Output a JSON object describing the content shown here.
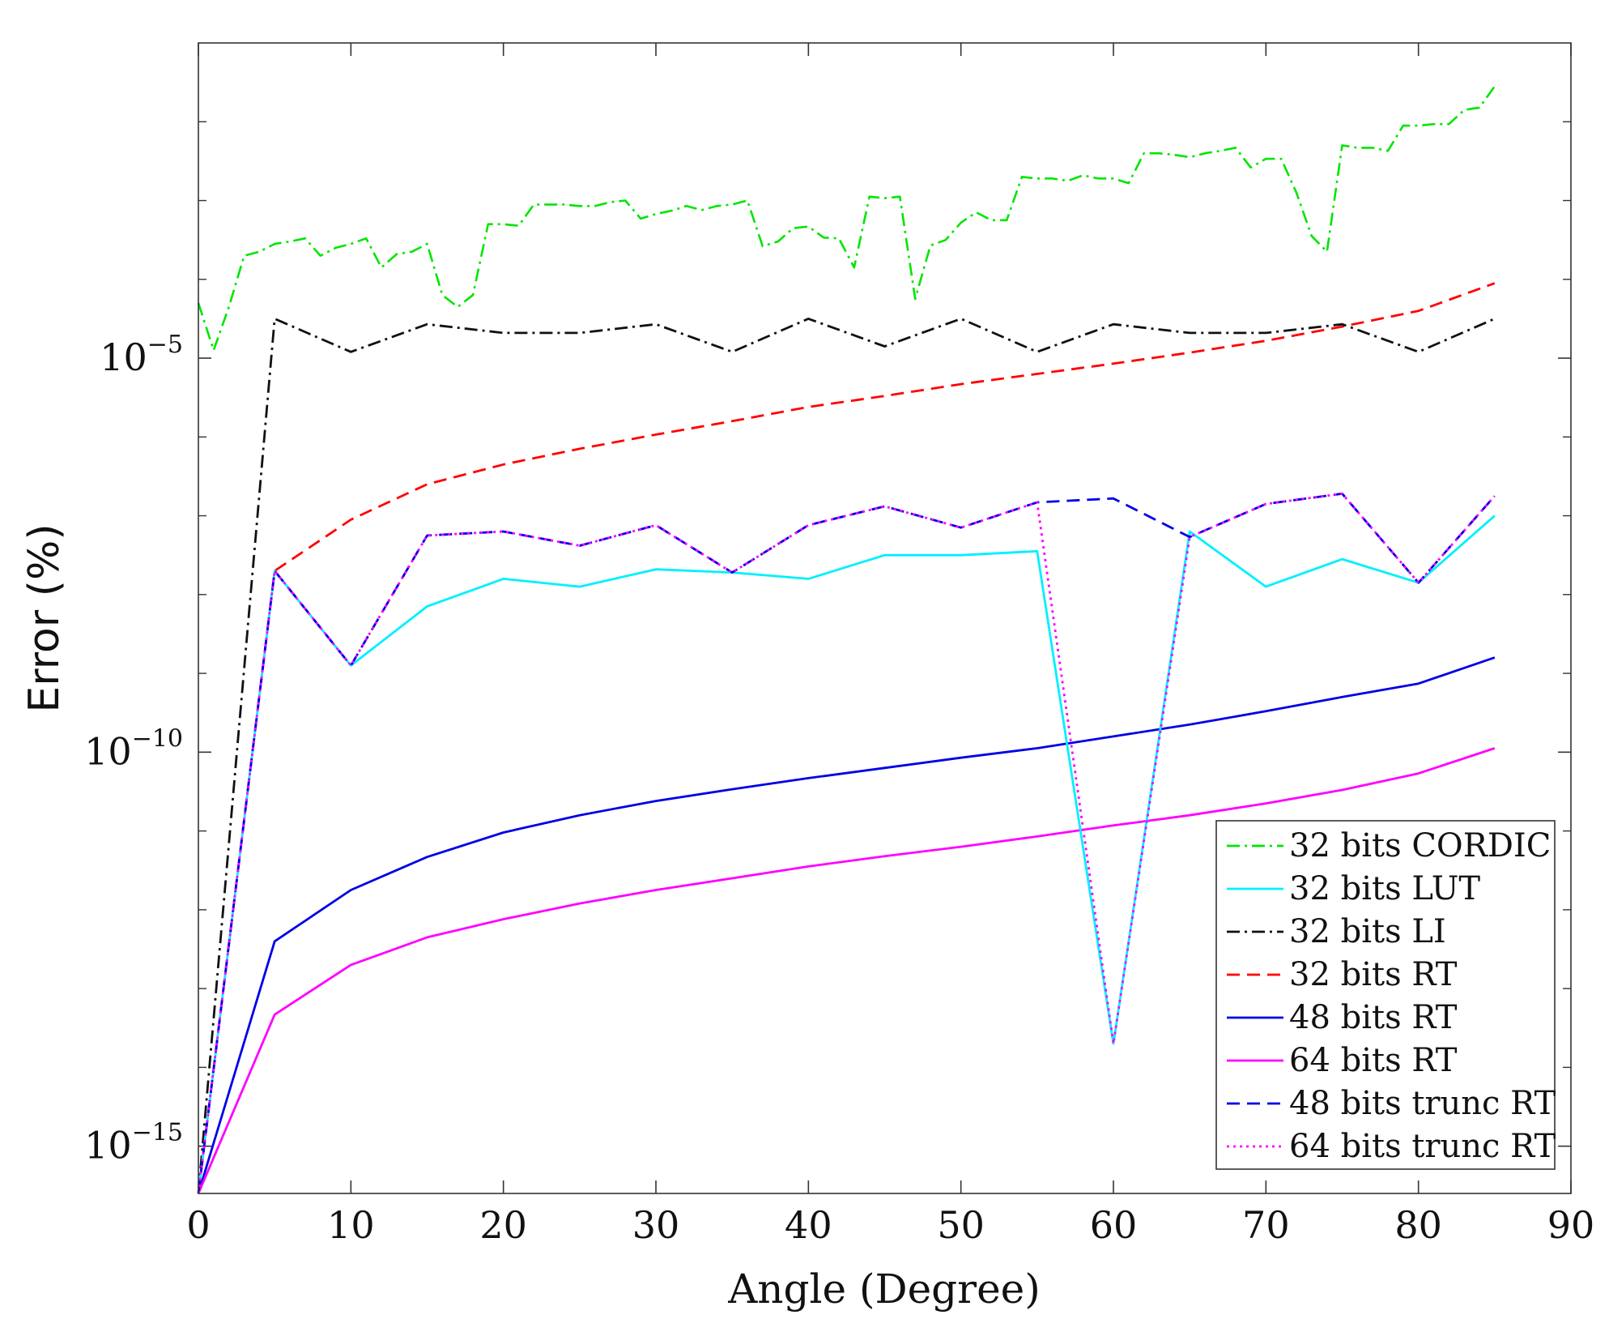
{
  "chart_data": {
    "type": "line",
    "title": "",
    "xlabel": "Angle (Degree)",
    "ylabel": "Error (%)",
    "xscale": "linear",
    "yscale": "log",
    "xlim": [
      0,
      90
    ],
    "ylim_log10": [
      -15.6,
      -1.0
    ],
    "x_ticks": [
      {
        "value": 0,
        "label": "0"
      },
      {
        "value": 10,
        "label": "10"
      },
      {
        "value": 20,
        "label": "20"
      },
      {
        "value": 30,
        "label": "30"
      },
      {
        "value": 40,
        "label": "40"
      },
      {
        "value": 50,
        "label": "50"
      },
      {
        "value": 60,
        "label": "60"
      },
      {
        "value": 70,
        "label": "70"
      },
      {
        "value": 80,
        "label": "80"
      },
      {
        "value": 90,
        "label": "90"
      }
    ],
    "y_ticks": [
      {
        "log10": -5,
        "base": "10",
        "exponent": "−5"
      },
      {
        "log10": -10,
        "base": "10",
        "exponent": "−10"
      },
      {
        "log10": -15,
        "base": "10",
        "exponent": "−15"
      }
    ],
    "y_minor_ticks_log10": [
      -2,
      -3,
      -4,
      -6,
      -7,
      -8,
      -9,
      -11,
      -12,
      -13,
      -14
    ],
    "legend_position": "bottom-right",
    "series": [
      {
        "name": "32 bits CORDIC",
        "color": "#00e600",
        "dash": "dashdot",
        "x": [
          0,
          1,
          2,
          3,
          4,
          5,
          6,
          7,
          8,
          9,
          10,
          11,
          12,
          13,
          14,
          15,
          16,
          17,
          18,
          19,
          20,
          21,
          22,
          23,
          24,
          25,
          26,
          27,
          28,
          29,
          30,
          31,
          32,
          33,
          34,
          35,
          36,
          37,
          38,
          39,
          40,
          41,
          42,
          43,
          44,
          45,
          46,
          47,
          48,
          49,
          50,
          51,
          52,
          53,
          54,
          55,
          56,
          57,
          58,
          59,
          60,
          61,
          62,
          63,
          64,
          65,
          66,
          67,
          68,
          69,
          70,
          71,
          72,
          73,
          74,
          75,
          76,
          77,
          78,
          79,
          80,
          81,
          82,
          83,
          84,
          85
        ],
        "log10_y": [
          -4.3,
          -4.9,
          -4.35,
          -3.7,
          -3.65,
          -3.55,
          -3.52,
          -3.48,
          -3.7,
          -3.6,
          -3.55,
          -3.48,
          -3.85,
          -3.68,
          -3.65,
          -3.55,
          -4.2,
          -4.35,
          -4.2,
          -3.3,
          -3.3,
          -3.32,
          -3.05,
          -3.05,
          -3.05,
          -3.07,
          -3.07,
          -3.02,
          -3.0,
          -3.23,
          -3.17,
          -3.13,
          -3.07,
          -3.12,
          -3.07,
          -3.05,
          -3.0,
          -3.58,
          -3.52,
          -3.35,
          -3.33,
          -3.47,
          -3.48,
          -3.85,
          -2.95,
          -2.97,
          -2.95,
          -4.25,
          -3.57,
          -3.5,
          -3.28,
          -3.15,
          -3.25,
          -3.25,
          -2.7,
          -2.72,
          -2.72,
          -2.75,
          -2.68,
          -2.72,
          -2.72,
          -2.78,
          -2.4,
          -2.4,
          -2.42,
          -2.45,
          -2.4,
          -2.37,
          -2.33,
          -2.58,
          -2.47,
          -2.47,
          -2.9,
          -3.45,
          -3.65,
          -2.3,
          -2.33,
          -2.33,
          -2.37,
          -2.05,
          -2.05,
          -2.03,
          -2.03,
          -1.85,
          -1.82,
          -1.55
        ]
      },
      {
        "name": "32 bits LUT",
        "color": "#00f0ff",
        "dash": "solid",
        "x": [
          0,
          5,
          10,
          15,
          20,
          25,
          30,
          35,
          40,
          45,
          50,
          55,
          60,
          65,
          70,
          75,
          80,
          85
        ],
        "log10_y": [
          -15.6,
          -7.7,
          -8.9,
          -8.15,
          -7.8,
          -7.9,
          -7.68,
          -7.72,
          -7.8,
          -7.5,
          -7.5,
          -7.45,
          -13.7,
          -7.2,
          -7.9,
          -7.55,
          -7.85,
          -7.0
        ]
      },
      {
        "name": "32 bits LI",
        "color": "#111111",
        "dash": "dashdot",
        "x": [
          0,
          5,
          10,
          15,
          20,
          25,
          30,
          35,
          40,
          45,
          50,
          55,
          60,
          65,
          70,
          75,
          80,
          85
        ],
        "log10_y": [
          -15.6,
          -4.5,
          -4.92,
          -4.57,
          -4.68,
          -4.68,
          -4.57,
          -4.92,
          -4.5,
          -4.85,
          -4.5,
          -4.92,
          -4.57,
          -4.68,
          -4.68,
          -4.57,
          -4.92,
          -4.5
        ]
      },
      {
        "name": "32 bits RT",
        "color": "#ff0000",
        "dash": "dashed",
        "x": [
          0,
          5,
          10,
          15,
          20,
          25,
          30,
          35,
          40,
          45,
          50,
          55,
          60,
          65,
          70,
          75,
          80,
          85
        ],
        "log10_y": [
          -15.6,
          -7.7,
          -7.05,
          -6.6,
          -6.35,
          -6.15,
          -5.97,
          -5.8,
          -5.62,
          -5.48,
          -5.33,
          -5.2,
          -5.07,
          -4.93,
          -4.78,
          -4.6,
          -4.4,
          -4.05
        ]
      },
      {
        "name": "48 bits RT",
        "color": "#0000e6",
        "dash": "solid",
        "x": [
          0,
          5,
          10,
          15,
          20,
          25,
          30,
          35,
          40,
          45,
          50,
          55,
          60,
          65,
          70,
          75,
          80,
          85
        ],
        "log10_y": [
          -15.6,
          -12.4,
          -11.75,
          -11.33,
          -11.02,
          -10.8,
          -10.62,
          -10.47,
          -10.33,
          -10.2,
          -10.07,
          -9.95,
          -9.8,
          -9.65,
          -9.48,
          -9.3,
          -9.13,
          -8.8
        ]
      },
      {
        "name": "64 bits RT",
        "color": "#ff00ff",
        "dash": "solid",
        "x": [
          0,
          5,
          10,
          15,
          20,
          25,
          30,
          35,
          40,
          45,
          50,
          55,
          60,
          65,
          70,
          75,
          80,
          85
        ],
        "log10_y": [
          -15.6,
          -13.33,
          -12.7,
          -12.35,
          -12.12,
          -11.92,
          -11.75,
          -11.6,
          -11.45,
          -11.32,
          -11.2,
          -11.07,
          -10.93,
          -10.8,
          -10.65,
          -10.48,
          -10.27,
          -9.95
        ]
      },
      {
        "name": "48 bits trunc RT",
        "color": "#0000e6",
        "dash": "dashed",
        "x": [
          0,
          5,
          10,
          15,
          20,
          25,
          30,
          35,
          40,
          45,
          50,
          55,
          60,
          65,
          70,
          75,
          80,
          85
        ],
        "log10_y": [
          -15.6,
          -7.7,
          -8.9,
          -7.25,
          -7.2,
          -7.38,
          -7.12,
          -7.72,
          -7.12,
          -6.88,
          -7.15,
          -6.83,
          -6.78,
          -7.27,
          -6.85,
          -6.72,
          -7.85,
          -6.75
        ]
      },
      {
        "name": "64 bits trunc RT",
        "color": "#ff00ff",
        "dash": "dotted",
        "x": [
          0,
          5,
          10,
          15,
          20,
          25,
          30,
          35,
          40,
          45,
          50,
          55,
          60,
          65,
          70,
          75,
          80,
          85
        ],
        "log10_y": [
          -15.6,
          -7.7,
          -8.9,
          -7.25,
          -7.2,
          -7.38,
          -7.12,
          -7.72,
          -7.12,
          -6.88,
          -7.15,
          -6.83,
          -13.7,
          -7.27,
          -6.85,
          -6.72,
          -7.85,
          -6.75
        ]
      }
    ]
  }
}
